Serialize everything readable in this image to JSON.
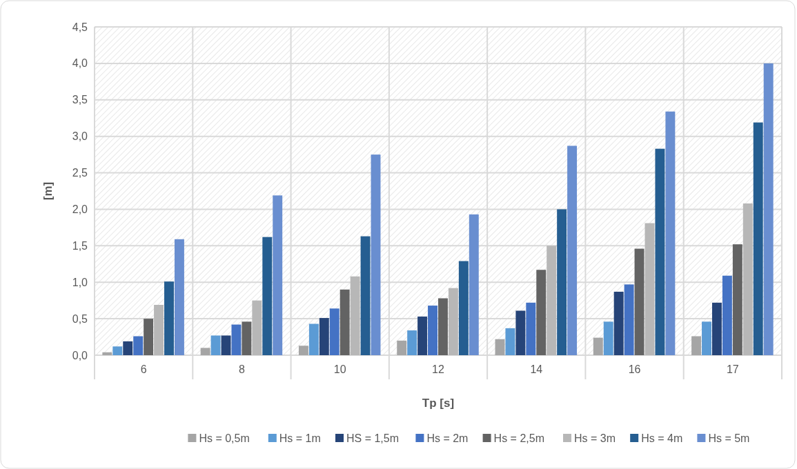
{
  "chart_data": {
    "type": "bar",
    "xlabel": "Tp [s]",
    "ylabel": "[m]",
    "categories": [
      "6",
      "8",
      "10",
      "12",
      "14",
      "16",
      "17"
    ],
    "series": [
      {
        "name": "Hs = 0,5m",
        "color": "#a5a5a5",
        "values": [
          0.04,
          0.1,
          0.13,
          0.2,
          0.22,
          0.24,
          0.26
        ]
      },
      {
        "name": "Hs = 1m",
        "color": "#5b9bd5",
        "values": [
          0.12,
          0.27,
          0.43,
          0.34,
          0.37,
          0.46,
          0.46
        ]
      },
      {
        "name": "HS = 1,5m",
        "color": "#264478",
        "values": [
          0.19,
          0.27,
          0.51,
          0.53,
          0.61,
          0.87,
          0.72
        ]
      },
      {
        "name": "Hs = 2m",
        "color": "#4472c4",
        "values": [
          0.26,
          0.42,
          0.64,
          0.68,
          0.72,
          0.97,
          1.09
        ]
      },
      {
        "name": "Hs = 2,5m",
        "color": "#636363",
        "values": [
          0.5,
          0.46,
          0.9,
          0.78,
          1.17,
          1.46,
          1.52
        ]
      },
      {
        "name": "Hs = 3m",
        "color": "#b7b7b7",
        "values": [
          0.69,
          0.75,
          1.08,
          0.92,
          1.5,
          1.81,
          2.08
        ]
      },
      {
        "name": "Hs = 4m",
        "color": "#255e91",
        "values": [
          1.01,
          1.62,
          1.63,
          1.29,
          2.0,
          2.83,
          3.19
        ]
      },
      {
        "name": "Hs = 5m",
        "color": "#698ed0",
        "values": [
          1.59,
          2.19,
          2.75,
          1.93,
          2.87,
          3.34,
          4.0
        ]
      }
    ],
    "ylim": [
      0,
      4.5
    ],
    "yticks": [
      {
        "value": 0,
        "label": "0,0"
      },
      {
        "value": 0.5,
        "label": "0,5"
      },
      {
        "value": 1,
        "label": "1,0"
      },
      {
        "value": 1.5,
        "label": "1,5"
      },
      {
        "value": 2,
        "label": "2,0"
      },
      {
        "value": 2.5,
        "label": "2,5"
      },
      {
        "value": 3,
        "label": "3,0"
      },
      {
        "value": 3.5,
        "label": "3,5"
      },
      {
        "value": 4,
        "label": "4,0"
      },
      {
        "value": 4.5,
        "label": "4,5"
      }
    ],
    "grid": true,
    "legend": "bottom"
  }
}
